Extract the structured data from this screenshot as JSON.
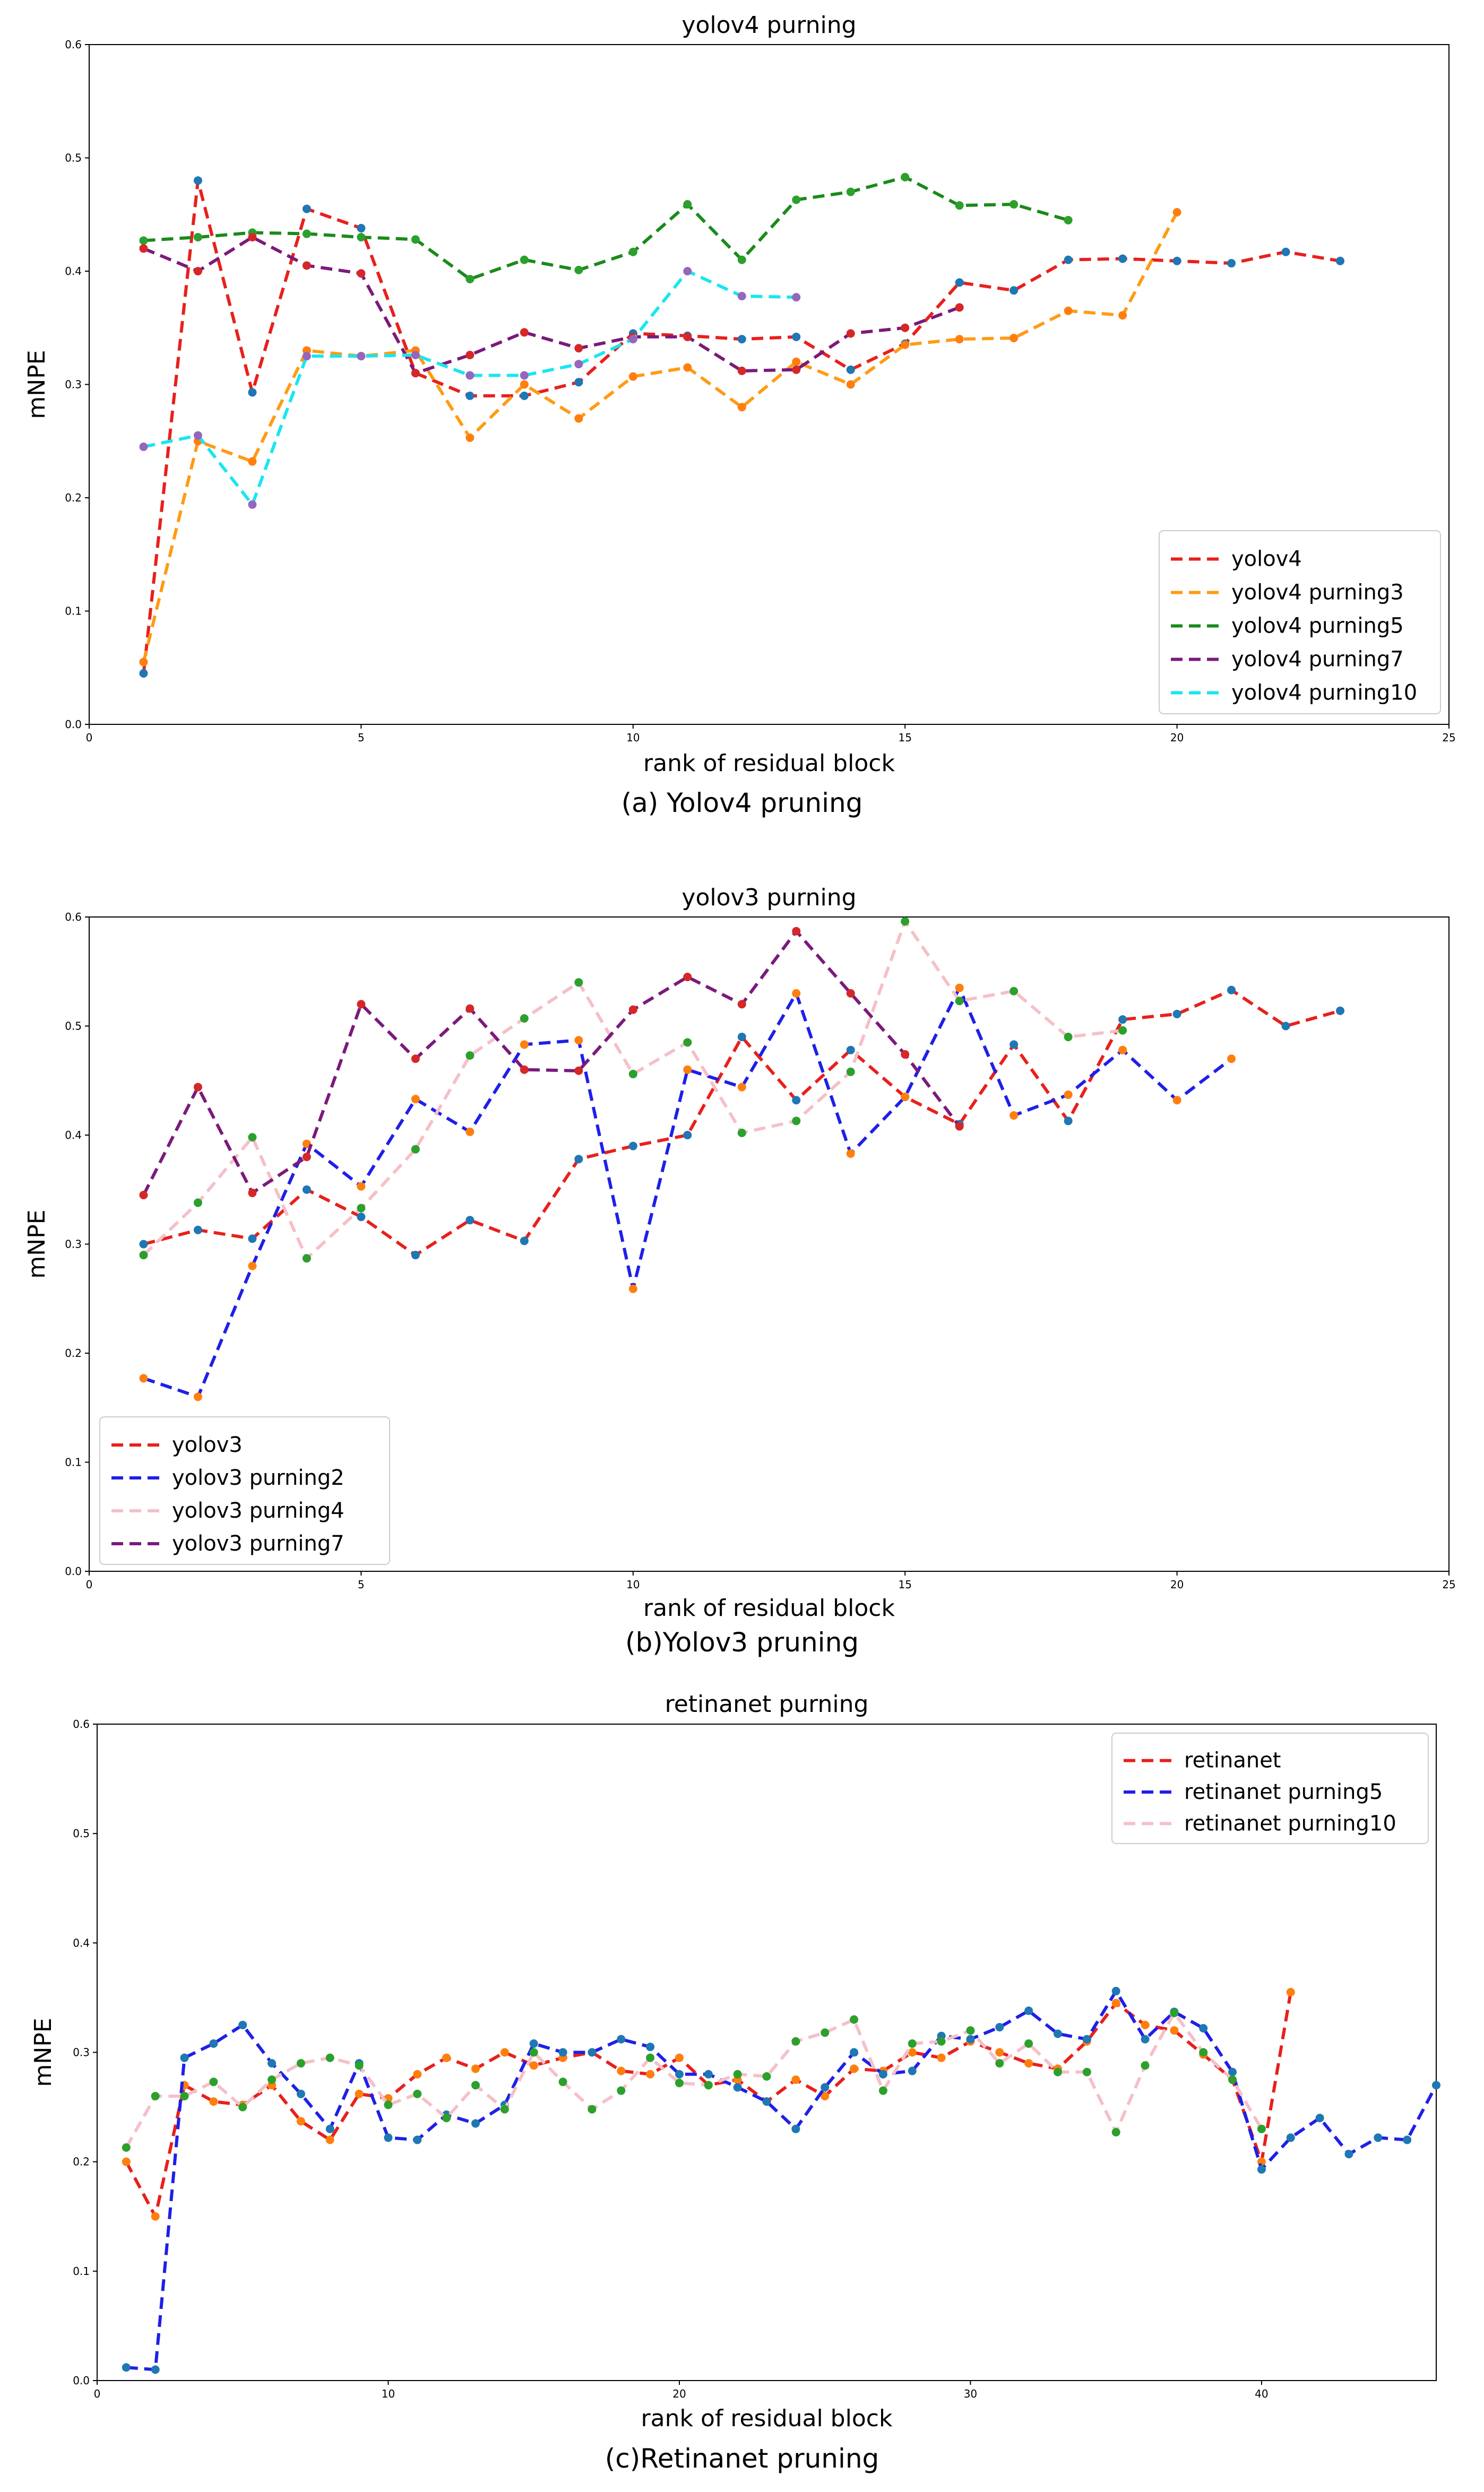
{
  "chart_data": [
    {
      "type": "line",
      "title": "yolov4 purning",
      "xlabel": "rank of residual block",
      "ylabel": "mNPE",
      "caption": "(a)  Yolov4 pruning",
      "xlim": [
        0,
        25
      ],
      "ylim": [
        0,
        0.6
      ],
      "xticks": [
        "0",
        "5",
        "10",
        "15",
        "20",
        "25"
      ],
      "yticks": [
        "0.0",
        "0.1",
        "0.2",
        "0.3",
        "0.4",
        "0.5",
        "0.6"
      ],
      "legend_position": "lower-right",
      "series": [
        {
          "name": "yolov4",
          "color": "#e8201c",
          "marker_color": "#1f77b4",
          "x": [
            1,
            2,
            3,
            4,
            5,
            6,
            7,
            8,
            9,
            10,
            11,
            12,
            13,
            14,
            15,
            16,
            17,
            18,
            19,
            20,
            21,
            22,
            23
          ],
          "y": [
            0.045,
            0.48,
            0.293,
            0.455,
            0.438,
            0.31,
            0.29,
            0.29,
            0.302,
            0.345,
            0.343,
            0.34,
            0.342,
            0.313,
            0.336,
            0.39,
            0.383,
            0.41,
            0.411,
            0.409,
            0.407,
            0.417,
            0.409
          ]
        },
        {
          "name": "yolov4 purning3",
          "color": "#ff9b14",
          "marker_color": "#ff7f0e",
          "x": [
            1,
            2,
            3,
            4,
            5,
            6,
            7,
            8,
            9,
            10,
            11,
            12,
            13,
            14,
            15,
            16,
            17,
            18,
            19,
            20
          ],
          "y": [
            0.055,
            0.25,
            0.232,
            0.33,
            0.325,
            0.33,
            0.253,
            0.3,
            0.27,
            0.307,
            0.315,
            0.28,
            0.32,
            0.3,
            0.335,
            0.34,
            0.341,
            0.365,
            0.361,
            0.452
          ]
        },
        {
          "name": "yolov4 purning5",
          "color": "#1a8a1a",
          "marker_color": "#2ca02c",
          "x": [
            1,
            2,
            3,
            4,
            5,
            6,
            7,
            8,
            9,
            10,
            11,
            12,
            13,
            14,
            15,
            16,
            17,
            18
          ],
          "y": [
            0.427,
            0.43,
            0.434,
            0.433,
            0.43,
            0.428,
            0.393,
            0.41,
            0.401,
            0.417,
            0.459,
            0.41,
            0.463,
            0.47,
            0.483,
            0.458,
            0.459,
            0.445
          ]
        },
        {
          "name": "yolov4 purning7",
          "color": "#7b1a7b",
          "marker_color": "#d62728",
          "x": [
            1,
            2,
            3,
            4,
            5,
            6,
            7,
            8,
            9,
            10,
            11,
            12,
            13,
            14,
            15,
            16
          ],
          "y": [
            0.42,
            0.4,
            0.43,
            0.405,
            0.398,
            0.31,
            0.326,
            0.346,
            0.332,
            0.342,
            0.342,
            0.312,
            0.313,
            0.345,
            0.35,
            0.368
          ]
        },
        {
          "name": "yolov4 purning10",
          "color": "#19e6f0",
          "marker_color": "#9467bd",
          "x": [
            1,
            2,
            3,
            4,
            5,
            6,
            7,
            8,
            9,
            10,
            11,
            12,
            13
          ],
          "y": [
            0.245,
            0.255,
            0.194,
            0.325,
            0.325,
            0.326,
            0.308,
            0.308,
            0.318,
            0.34,
            0.4,
            0.378,
            0.377
          ]
        }
      ]
    },
    {
      "type": "line",
      "title": "yolov3 purning",
      "xlabel": "rank of residual block",
      "ylabel": "mNPE",
      "caption": "(b)Yolov3 pruning",
      "xlim": [
        0,
        25
      ],
      "ylim": [
        0,
        0.6
      ],
      "xticks": [
        "0",
        "5",
        "10",
        "15",
        "20",
        "25"
      ],
      "yticks": [
        "0.0",
        "0.1",
        "0.2",
        "0.3",
        "0.4",
        "0.5",
        "0.6"
      ],
      "legend_position": "lower-left",
      "series": [
        {
          "name": "yolov3",
          "color": "#e8201c",
          "marker_color": "#1f77b4",
          "x": [
            1,
            2,
            3,
            4,
            5,
            6,
            7,
            8,
            9,
            10,
            11,
            12,
            13,
            14,
            15,
            16,
            17,
            18,
            19,
            20,
            21,
            22,
            23
          ],
          "y": [
            0.3,
            0.313,
            0.305,
            0.35,
            0.325,
            0.29,
            0.322,
            0.303,
            0.378,
            0.39,
            0.4,
            0.49,
            0.432,
            0.478,
            0.435,
            0.41,
            0.483,
            0.413,
            0.506,
            0.511,
            0.533,
            0.5,
            0.514
          ]
        },
        {
          "name": "yolov3 purning2",
          "color": "#1f1fe8",
          "marker_color": "#ff7f0e",
          "x": [
            1,
            2,
            3,
            4,
            5,
            6,
            7,
            8,
            9,
            10,
            11,
            12,
            13,
            14,
            15,
            16,
            17,
            18,
            19,
            20,
            21
          ],
          "y": [
            0.177,
            0.16,
            0.28,
            0.392,
            0.353,
            0.433,
            0.403,
            0.483,
            0.487,
            0.259,
            0.46,
            0.444,
            0.53,
            0.383,
            0.435,
            0.535,
            0.418,
            0.437,
            0.478,
            0.432,
            0.47
          ]
        },
        {
          "name": "yolov3 purning4",
          "color": "#f5c0c8",
          "marker_color": "#2ca02c",
          "x": [
            1,
            2,
            3,
            4,
            5,
            6,
            7,
            8,
            9,
            10,
            11,
            12,
            13,
            14,
            15,
            16,
            17,
            18,
            19
          ],
          "y": [
            0.29,
            0.338,
            0.398,
            0.287,
            0.333,
            0.387,
            0.473,
            0.507,
            0.54,
            0.456,
            0.485,
            0.402,
            0.413,
            0.458,
            0.596,
            0.523,
            0.532,
            0.49,
            0.496
          ]
        },
        {
          "name": "yolov3 purning7",
          "color": "#7b1a7b",
          "marker_color": "#d62728",
          "x": [
            1,
            2,
            3,
            4,
            5,
            6,
            7,
            8,
            9,
            10,
            11,
            12,
            13,
            14,
            15,
            16
          ],
          "y": [
            0.345,
            0.444,
            0.347,
            0.38,
            0.52,
            0.47,
            0.516,
            0.46,
            0.459,
            0.515,
            0.545,
            0.52,
            0.587,
            0.53,
            0.474,
            0.408
          ]
        }
      ]
    },
    {
      "type": "line",
      "title": "retinanet purning",
      "xlabel": "rank of residual block",
      "ylabel": "mNPE",
      "caption": "(c)Retinanet pruning",
      "xlim": [
        0,
        46
      ],
      "ylim": [
        0,
        0.6
      ],
      "xticks": [
        "0",
        "10",
        "20",
        "30",
        "40"
      ],
      "xtick_values": [
        0,
        10,
        20,
        30,
        40
      ],
      "yticks": [
        "0.0",
        "0.1",
        "0.2",
        "0.3",
        "0.4",
        "0.5",
        "0.6"
      ],
      "legend_position": "upper-right",
      "series": [
        {
          "name": "retinanet",
          "color": "#e8201c",
          "marker_color": "#ff7f0e",
          "x": [
            1,
            2,
            3,
            4,
            5,
            6,
            7,
            8,
            9,
            10,
            11,
            12,
            13,
            14,
            15,
            16,
            17,
            18,
            19,
            20,
            21,
            22,
            23,
            24,
            25,
            26,
            27,
            28,
            29,
            30,
            31,
            32,
            33,
            34,
            35,
            36,
            37,
            38,
            39,
            40,
            41
          ],
          "y": [
            0.2,
            0.15,
            0.27,
            0.255,
            0.252,
            0.27,
            0.237,
            0.22,
            0.262,
            0.258,
            0.28,
            0.295,
            0.285,
            0.3,
            0.288,
            0.295,
            0.3,
            0.283,
            0.28,
            0.295,
            0.27,
            0.275,
            0.255,
            0.275,
            0.26,
            0.285,
            0.283,
            0.3,
            0.295,
            0.31,
            0.3,
            0.29,
            0.285,
            0.31,
            0.345,
            0.325,
            0.32,
            0.298,
            0.275,
            0.2,
            0.355
          ]
        },
        {
          "name": "retinanet purning5",
          "color": "#1f1fe8",
          "marker_color": "#1f77b4",
          "x": [
            1,
            2,
            3,
            4,
            5,
            6,
            7,
            8,
            9,
            10,
            11,
            12,
            13,
            14,
            15,
            16,
            17,
            18,
            19,
            20,
            21,
            22,
            23,
            24,
            25,
            26,
            27,
            28,
            29,
            30,
            31,
            32,
            33,
            34,
            35,
            36,
            37,
            38,
            39,
            40,
            41,
            42,
            43,
            44,
            45,
            46
          ],
          "y": [
            0.012,
            0.01,
            0.295,
            0.308,
            0.325,
            0.29,
            0.262,
            0.23,
            0.29,
            0.222,
            0.22,
            0.243,
            0.235,
            0.252,
            0.308,
            0.3,
            0.3,
            0.312,
            0.305,
            0.28,
            0.28,
            0.268,
            0.255,
            0.23,
            0.268,
            0.3,
            0.28,
            0.283,
            0.315,
            0.312,
            0.323,
            0.338,
            0.317,
            0.312,
            0.356,
            0.312,
            0.337,
            0.322,
            0.282,
            0.193,
            0.222,
            0.24,
            0.207,
            0.222,
            0.22,
            0.27
          ]
        },
        {
          "name": "retinanet purning10",
          "color": "#f5c0c8",
          "marker_color": "#2ca02c",
          "x": [
            1,
            2,
            3,
            4,
            5,
            6,
            7,
            8,
            9,
            10,
            11,
            12,
            13,
            14,
            15,
            16,
            17,
            18,
            19,
            20,
            21,
            22,
            23,
            24,
            25,
            26,
            27,
            28,
            29,
            30,
            31,
            32,
            33,
            34,
            35,
            36,
            37,
            38,
            39,
            40
          ],
          "y": [
            0.213,
            0.26,
            0.26,
            0.273,
            0.25,
            0.275,
            0.29,
            0.295,
            0.288,
            0.252,
            0.262,
            0.24,
            0.27,
            0.248,
            0.3,
            0.273,
            0.248,
            0.265,
            0.295,
            0.272,
            0.27,
            0.28,
            0.278,
            0.31,
            0.318,
            0.33,
            0.265,
            0.308,
            0.31,
            0.32,
            0.29,
            0.308,
            0.282,
            0.282,
            0.227,
            0.288,
            0.336,
            0.3,
            0.275,
            0.23
          ]
        }
      ]
    }
  ]
}
